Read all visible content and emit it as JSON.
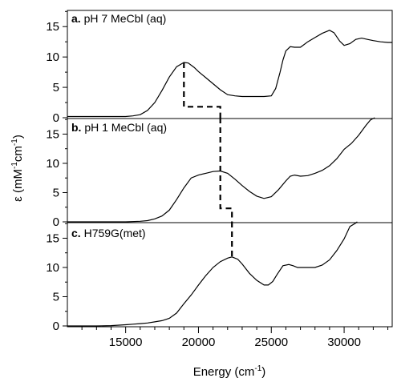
{
  "chart_data": {
    "type": "line",
    "xlabel": "Energy (cm",
    "xlabel_sup": "-1",
    "xlabel_close": ")",
    "ylabel": "ε (mM",
    "ylabel_sup1": "-1",
    "ylabel_mid": "cm",
    "ylabel_sup2": "-1",
    "ylabel_close": ")",
    "xlim": [
      11000,
      33300
    ],
    "x_ticks": [
      15000,
      20000,
      25000,
      30000
    ],
    "x_tick_labels": [
      "15000",
      "20000",
      "25000",
      "30000"
    ],
    "panels": [
      {
        "id": "a",
        "label_bold": "a.",
        "label_text": " pH 7 MeCbl (aq)",
        "ylim": [
          0,
          17.8
        ],
        "y_ticks": [
          0,
          5,
          10,
          15
        ],
        "y_tick_labels": [
          "0",
          "5",
          "10",
          "15"
        ],
        "series": [
          {
            "x": [
              11000,
              12000,
              13000,
              14000,
              15000,
              15500,
              16000,
              16500,
              17000,
              17500,
              18000,
              18500,
              19000,
              19300,
              19700,
              20000,
              20300,
              20700,
              21000,
              21500,
              22000,
              22500,
              23000,
              23500,
              24000,
              24500,
              25000,
              25300,
              25600,
              25800,
              26000,
              26300,
              26600,
              27000,
              27500,
              28000,
              28500,
              29000,
              29300,
              29700,
              30000,
              30400,
              30800,
              31200,
              31600,
              32000,
              32500,
              33000,
              33300
            ],
            "y": [
              0.2,
              0.2,
              0.2,
              0.2,
              0.2,
              0.3,
              0.5,
              1.2,
              2.5,
              4.5,
              6.7,
              8.4,
              9.1,
              9.0,
              8.3,
              7.6,
              7.0,
              6.2,
              5.6,
              4.6,
              3.8,
              3.6,
              3.5,
              3.5,
              3.5,
              3.5,
              3.6,
              4.8,
              7.5,
              9.5,
              11.0,
              11.7,
              11.6,
              11.6,
              12.5,
              13.2,
              13.9,
              14.4,
              14.0,
              12.6,
              11.9,
              12.2,
              12.9,
              13.1,
              12.9,
              12.7,
              12.5,
              12.4,
              12.4
            ]
          }
        ],
        "marker": {
          "x": [
            19000,
            19000,
            21500,
            21500
          ],
          "y": [
            9.1,
            1.8,
            1.8,
            0
          ]
        }
      },
      {
        "id": "b",
        "label_bold": "b.",
        "label_text": " pH 1 MeCbl (aq)",
        "ylim": [
          0,
          17.8
        ],
        "y_ticks": [
          0,
          5,
          10,
          15
        ],
        "y_tick_labels": [
          "0",
          "5",
          "10",
          "15"
        ],
        "series": [
          {
            "x": [
              11000,
              12000,
              13000,
              14000,
              15000,
              16000,
              16500,
              17000,
              17500,
              18000,
              18500,
              19000,
              19500,
              20000,
              20500,
              21000,
              21500,
              22000,
              22500,
              23000,
              23500,
              24000,
              24500,
              25000,
              25500,
              26000,
              26300,
              26600,
              27000,
              27500,
              28000,
              28500,
              29000,
              29500,
              30000,
              30500,
              31000,
              31500,
              31800,
              32100
            ],
            "y": [
              0,
              0,
              0,
              0,
              0,
              0.1,
              0.2,
              0.5,
              1.0,
              2.0,
              3.8,
              5.8,
              7.5,
              8.0,
              8.3,
              8.6,
              8.7,
              8.3,
              7.3,
              6.2,
              5.2,
              4.4,
              4.0,
              4.3,
              5.5,
              7.0,
              7.8,
              8.0,
              7.8,
              7.9,
              8.3,
              8.8,
              9.6,
              10.8,
              12.4,
              13.4,
              14.8,
              16.5,
              17.4,
              17.8
            ]
          }
        ],
        "marker": {
          "x": [
            21500,
            21500,
            22300,
            22300
          ],
          "y": [
            17.8,
            2.3,
            2.3,
            0
          ]
        }
      },
      {
        "id": "c",
        "label_bold": "c.",
        "label_text": " H759G(met)",
        "ylim": [
          0,
          17.8
        ],
        "y_ticks": [
          0,
          5,
          10,
          15
        ],
        "y_tick_labels": [
          "0",
          "5",
          "10",
          "15"
        ],
        "series": [
          {
            "x": [
              11000,
              12000,
              13000,
              14000,
              15000,
              15500,
              16000,
              16500,
              17000,
              17500,
              18000,
              18500,
              19000,
              19500,
              20000,
              20500,
              21000,
              21500,
              22000,
              22300,
              22700,
              23000,
              23500,
              24000,
              24500,
              24800,
              25100,
              25400,
              25800,
              26200,
              26500,
              26800,
              27200,
              27600,
              28000,
              28500,
              29000,
              29500,
              30000,
              30400,
              30800,
              30900
            ],
            "y": [
              0,
              0,
              0,
              0.05,
              0.2,
              0.3,
              0.4,
              0.5,
              0.7,
              0.9,
              1.3,
              2.2,
              3.8,
              5.3,
              7.0,
              8.6,
              10.0,
              11.0,
              11.6,
              11.8,
              11.4,
              10.6,
              9.0,
              7.8,
              7.0,
              7.0,
              7.6,
              8.8,
              10.3,
              10.5,
              10.3,
              10.0,
              10.0,
              10.0,
              10.0,
              10.4,
              11.3,
              12.9,
              14.9,
              17.0,
              17.6,
              17.8
            ]
          }
        ],
        "marker": {
          "x": [
            22300,
            22300
          ],
          "y": [
            17.8,
            11.8
          ]
        }
      }
    ]
  }
}
